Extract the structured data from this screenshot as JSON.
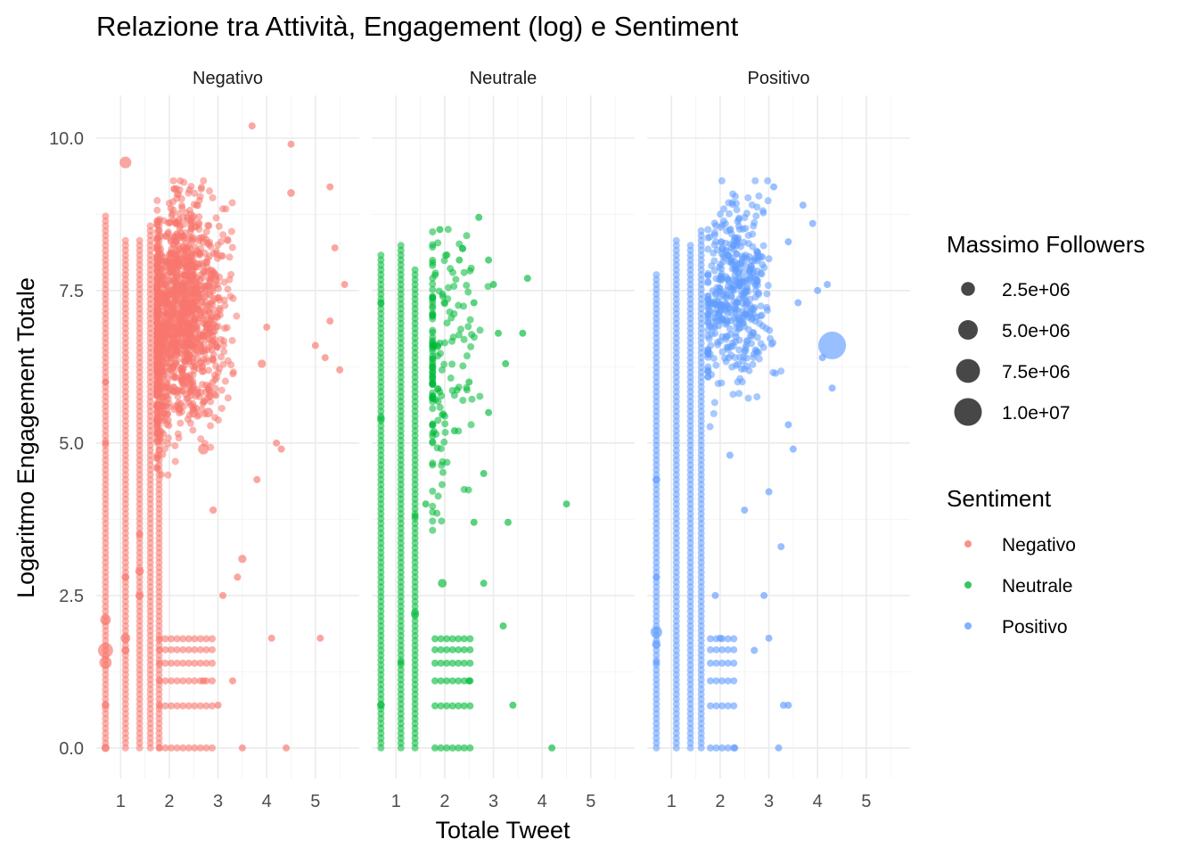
{
  "chart_data": {
    "type": "scatter",
    "title": "Relazione tra Attività, Engagement (log) e Sentiment",
    "xlabel": "Totale Tweet",
    "ylabel": "Logaritmo Engagement Totale",
    "facets": [
      "Negativo",
      "Neutrale",
      "Positivo"
    ],
    "xlim": [
      0.5,
      5.9
    ],
    "ylim": [
      -0.5,
      10.7
    ],
    "xticks": [
      "1",
      "2",
      "3",
      "4",
      "5"
    ],
    "yticks": [
      "0.0",
      "2.5",
      "5.0",
      "7.5",
      "10.0"
    ],
    "grid": true,
    "colors": {
      "Negativo": "#F8766D",
      "Neutrale": "#00BA38",
      "Positivo": "#619CFF"
    },
    "size_legend": {
      "title": "Massimo Followers",
      "labels": [
        "2.5e+06",
        "5.0e+06",
        "7.5e+06",
        "1.0e+07"
      ],
      "values": [
        2500000,
        5000000,
        7500000,
        10000000
      ]
    },
    "color_legend": {
      "title": "Sentiment",
      "labels": [
        "Negativo",
        "Neutrale",
        "Positivo"
      ]
    },
    "series": [
      {
        "name": "Negativo",
        "columns_x": [
          0.69,
          1.1,
          1.39,
          1.61,
          1.79
        ],
        "column_ymax": [
          8.8,
          8.4,
          8.4,
          8.6,
          8.7
        ],
        "points": [
          [
            0.69,
            1.6,
            3000000
          ],
          [
            0.69,
            1.4,
            2000000
          ],
          [
            0.69,
            2.1,
            1500000
          ],
          [
            0.69,
            0.7,
            800000
          ],
          [
            0.69,
            0.0,
            900000
          ],
          [
            0.69,
            6.0,
            500000
          ],
          [
            0.69,
            5.0,
            600000
          ],
          [
            1.1,
            9.6,
            1800000
          ],
          [
            1.1,
            1.8,
            1200000
          ],
          [
            1.1,
            1.6,
            900000
          ],
          [
            1.1,
            2.8,
            800000
          ],
          [
            1.39,
            2.9,
            1000000
          ],
          [
            1.39,
            2.5,
            900000
          ],
          [
            1.39,
            3.5,
            700000
          ],
          [
            2.0,
            6.5,
            2000000
          ],
          [
            2.3,
            6.0,
            1500000
          ],
          [
            2.5,
            5.5,
            1200000
          ],
          [
            2.7,
            4.9,
            1500000
          ],
          [
            2.8,
            5.5,
            1200000
          ],
          [
            2.9,
            3.9,
            700000
          ],
          [
            3.5,
            3.1,
            900000
          ],
          [
            3.9,
            6.3,
            900000
          ],
          [
            4.3,
            4.9,
            600000
          ],
          [
            4.5,
            9.1,
            800000
          ],
          [
            3.7,
            10.2,
            300000
          ],
          [
            4.5,
            9.9,
            300000
          ],
          [
            5.3,
            9.2,
            200000
          ],
          [
            5.6,
            7.6,
            200000
          ],
          [
            5.5,
            6.2,
            200000
          ],
          [
            5.1,
            1.8,
            200000
          ],
          [
            5.0,
            6.6,
            200000
          ],
          [
            5.3,
            7.0,
            200000
          ],
          [
            4.4,
            0.0,
            200000
          ],
          [
            4.1,
            1.8,
            200000
          ],
          [
            3.5,
            0.0,
            200000
          ],
          [
            3.3,
            1.1,
            200000
          ],
          [
            3.0,
            0.7,
            200000
          ],
          [
            2.7,
            1.1,
            200000
          ],
          [
            3.1,
            2.5,
            200000
          ],
          [
            3.4,
            2.8,
            200000
          ],
          [
            3.8,
            4.4,
            200000
          ],
          [
            4.2,
            5.0,
            200000
          ],
          [
            5.4,
            8.2,
            200000
          ],
          [
            5.2,
            6.4,
            200000
          ],
          [
            4.0,
            6.9,
            200000
          ]
        ]
      },
      {
        "name": "Neutrale",
        "columns_x": [
          0.69,
          1.1,
          1.39
        ],
        "column_ymax": [
          8.1,
          8.3,
          7.9
        ],
        "points": [
          [
            0.69,
            0.7,
            800000
          ],
          [
            0.69,
            5.4,
            800000
          ],
          [
            0.69,
            7.3,
            500000
          ],
          [
            1.1,
            1.4,
            500000
          ],
          [
            1.39,
            2.2,
            900000
          ],
          [
            1.39,
            3.8,
            600000
          ],
          [
            1.61,
            4.0,
            600000
          ],
          [
            1.95,
            2.7,
            1000000
          ],
          [
            2.3,
            8.0,
            300000
          ],
          [
            2.6,
            7.3,
            300000
          ],
          [
            2.8,
            4.5,
            300000
          ],
          [
            3.0,
            7.6,
            200000
          ],
          [
            3.1,
            6.8,
            200000
          ],
          [
            3.25,
            6.3,
            200000
          ],
          [
            3.3,
            3.7,
            200000
          ],
          [
            3.4,
            0.7,
            200000
          ],
          [
            3.7,
            7.7,
            200000
          ],
          [
            3.6,
            6.8,
            200000
          ],
          [
            4.5,
            4.0,
            200000
          ],
          [
            4.2,
            0.0,
            200000
          ],
          [
            3.2,
            2.0,
            200000
          ],
          [
            2.9,
            5.5,
            200000
          ],
          [
            2.5,
            6.0,
            200000
          ],
          [
            2.9,
            8.0,
            200000
          ],
          [
            2.7,
            8.7,
            200000
          ],
          [
            1.9,
            8.5,
            200000
          ],
          [
            2.2,
            5.2,
            200000
          ],
          [
            2.6,
            3.7,
            200000
          ],
          [
            2.8,
            2.7,
            200000
          ],
          [
            2.5,
            1.1,
            200000
          ]
        ]
      },
      {
        "name": "Positivo",
        "columns_x": [
          0.69,
          1.1,
          1.39,
          1.61
        ],
        "column_ymax": [
          7.8,
          8.4,
          8.3,
          8.5
        ],
        "points": [
          [
            0.69,
            1.9,
            1800000
          ],
          [
            0.69,
            1.7,
            1000000
          ],
          [
            0.69,
            4.4,
            800000
          ],
          [
            0.69,
            2.8,
            500000
          ],
          [
            0.69,
            1.4,
            600000
          ],
          [
            4.3,
            6.6,
            10000000
          ],
          [
            3.7,
            8.9,
            300000
          ],
          [
            3.9,
            8.6,
            300000
          ],
          [
            3.1,
            9.2,
            300000
          ],
          [
            4.0,
            7.5,
            200000
          ],
          [
            4.2,
            7.6,
            200000
          ],
          [
            4.1,
            6.4,
            200000
          ],
          [
            4.3,
            5.9,
            200000
          ],
          [
            3.4,
            5.3,
            200000
          ],
          [
            3.4,
            8.3,
            200000
          ],
          [
            3.6,
            7.3,
            200000
          ],
          [
            3.5,
            4.9,
            200000
          ],
          [
            3.25,
            3.3,
            200000
          ],
          [
            3.0,
            1.8,
            200000
          ],
          [
            2.9,
            2.5,
            200000
          ],
          [
            3.3,
            0.7,
            200000
          ],
          [
            3.2,
            0.0,
            200000
          ],
          [
            2.3,
            0.0,
            200000
          ],
          [
            2.0,
            1.8,
            200000
          ],
          [
            2.5,
            3.9,
            200000
          ],
          [
            2.7,
            1.6,
            200000
          ],
          [
            3.4,
            0.7,
            200000
          ],
          [
            3.0,
            4.2,
            200000
          ],
          [
            2.2,
            4.8,
            200000
          ],
          [
            1.9,
            2.5,
            200000
          ]
        ]
      }
    ]
  }
}
